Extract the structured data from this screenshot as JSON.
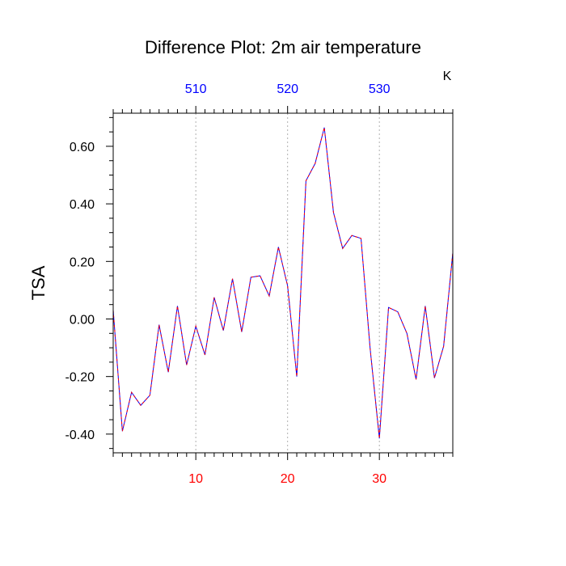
{
  "chart_data": {
    "type": "line",
    "title": "Difference Plot: 2m air temperature",
    "units": "K",
    "ylabel": "TSA",
    "xlabel": "",
    "xlim": [
      1,
      38
    ],
    "ylim": [
      -0.465,
      0.715
    ],
    "grid": "vertical dashed lines at bottom x-axis major ticks",
    "bottom_axis": {
      "ticks": [
        10,
        20,
        30
      ],
      "tick_labels": [
        "10",
        "20",
        "30"
      ],
      "color": "#ff0000"
    },
    "top_axis": {
      "ticks": [
        510,
        520,
        530
      ],
      "tick_labels": [
        "510",
        "520",
        "530"
      ],
      "color": "#0000ff",
      "aligned_with_bottom": [
        10,
        20,
        30
      ]
    },
    "left_axis": {
      "ticks": [
        0.6,
        0.4,
        0.2,
        0.0,
        -0.2,
        -0.4
      ],
      "tick_labels": [
        "0.60",
        "0.40",
        "0.20",
        "0.00",
        "-0.20",
        "-0.40"
      ]
    },
    "series": [
      {
        "line_color": "#0000ff",
        "dash_color": "#ff0000",
        "x": [
          1,
          2,
          3,
          4,
          5,
          6,
          7,
          8,
          9,
          10,
          11,
          12,
          13,
          14,
          15,
          16,
          17,
          18,
          19,
          20,
          21,
          22,
          23,
          24,
          25,
          26,
          27,
          28,
          29,
          30,
          31,
          32,
          33,
          34,
          35,
          36,
          37,
          38
        ],
        "values": [
          0.03,
          -0.39,
          -0.255,
          -0.3,
          -0.265,
          -0.02,
          -0.185,
          0.045,
          -0.16,
          -0.025,
          -0.125,
          0.075,
          -0.04,
          0.14,
          -0.045,
          0.145,
          0.15,
          0.08,
          0.25,
          0.115,
          -0.2,
          0.48,
          0.54,
          0.665,
          0.37,
          0.245,
          0.29,
          0.28,
          -0.105,
          -0.415,
          0.04,
          0.025,
          -0.05,
          -0.21,
          0.045,
          -0.205,
          -0.095,
          0.23
        ]
      }
    ]
  }
}
